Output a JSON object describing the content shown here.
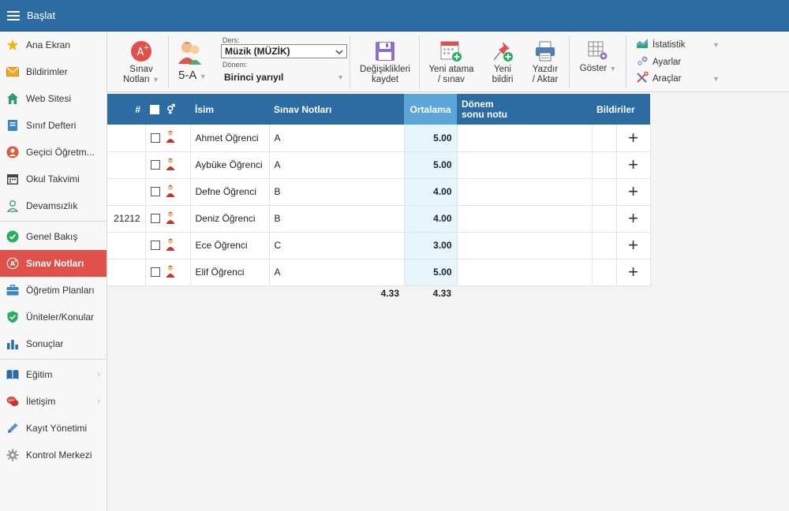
{
  "topbar": {
    "title": "Başlat"
  },
  "sidebar": {
    "items": [
      {
        "label": "Ana Ekran"
      },
      {
        "label": "Bildirimler"
      },
      {
        "label": "Web Sitesi"
      },
      {
        "label": "Sınıf Defteri"
      },
      {
        "label": "Geçici Öğretm..."
      },
      {
        "label": "Okul Takvimi"
      },
      {
        "label": "Devamsızlık"
      },
      {
        "label": "Genel Bakış"
      },
      {
        "label": "Sınav Notları"
      },
      {
        "label": "Öğretim Planları"
      },
      {
        "label": "Üniteler/Konular"
      },
      {
        "label": "Sonuçlar"
      },
      {
        "label": "Eğitim"
      },
      {
        "label": "İletişim"
      },
      {
        "label": "Kayıt Yönetimi"
      },
      {
        "label": "Kontrol Merkezi"
      }
    ]
  },
  "toolbar": {
    "sinav_line1": "Sınav",
    "sinav_line2": "Notları",
    "class_name": "5-A",
    "ders_label": "Ders:",
    "ders_value": "Müzik (MÜZİK)",
    "donem_label": "Dönem:",
    "donem_value": "Birinci yarıyıl",
    "save_line1": "Değişiklikleri",
    "save_line2": "kaydet",
    "new_exam_line1": "Yeni atama",
    "new_exam_line2": "/ sınav",
    "new_notice_line1": "Yeni",
    "new_notice_line2": "bildiri",
    "print_line1": "Yazdır",
    "print_line2": "/ Aktar",
    "show_label": "Göster",
    "stats_label": "İstatistik",
    "settings_label": "Ayarlar",
    "tools_label": "Araçlar"
  },
  "table": {
    "headers": {
      "num": "#",
      "gender": "⚥",
      "name": "İsim",
      "grades": "Sınav Notları",
      "avg": "Ortalama",
      "term_line1": "Dönem",
      "term_line2": "sonu notu",
      "notices": "Bildiriler"
    },
    "rows": [
      {
        "num": "",
        "name": "Ahmet Öğrenci",
        "grade": "A",
        "avg": "5.00"
      },
      {
        "num": "",
        "name": "Aybüke Öğrenci",
        "grade": "A",
        "avg": "5.00"
      },
      {
        "num": "",
        "name": "Defne Öğrenci",
        "grade": "B",
        "avg": "4.00"
      },
      {
        "num": "21212",
        "name": "Deniz Öğrenci",
        "grade": "B",
        "avg": "4.00"
      },
      {
        "num": "",
        "name": "Ece Öğrenci",
        "grade": "C",
        "avg": "3.00"
      },
      {
        "num": "",
        "name": "Elif Öğrenci",
        "grade": "A",
        "avg": "5.00"
      }
    ],
    "footer": {
      "grades_avg": "4.33",
      "overall_avg": "4.33"
    }
  },
  "colors": {
    "header_blue": "#2d6ca3",
    "avg_header": "#5aa6d9",
    "active_red": "#e0514c"
  }
}
